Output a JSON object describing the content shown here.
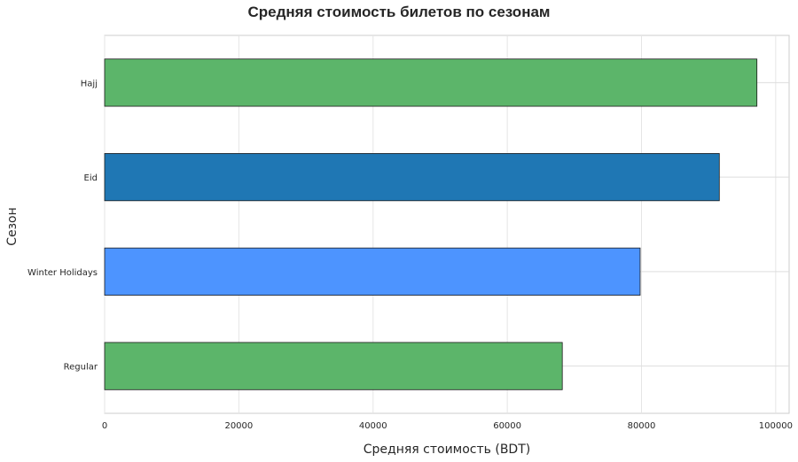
{
  "chart_data": {
    "type": "bar",
    "orientation": "horizontal",
    "title": "Средняя стоимость билетов по сезонам",
    "xlabel": "Средняя стоимость (BDT)",
    "ylabel": "Сезон",
    "categories": [
      "Hajj",
      "Eid",
      "Winter Holidays",
      "Regular"
    ],
    "values": [
      97200,
      91600,
      79800,
      68200
    ],
    "colors": [
      "#5cb56a",
      "#1f77b4",
      "#4d94ff",
      "#5cb56a"
    ],
    "xlim": [
      0,
      102000
    ],
    "xticks": [
      0,
      20000,
      40000,
      60000,
      80000,
      100000
    ],
    "grid": true,
    "legend": "none"
  }
}
